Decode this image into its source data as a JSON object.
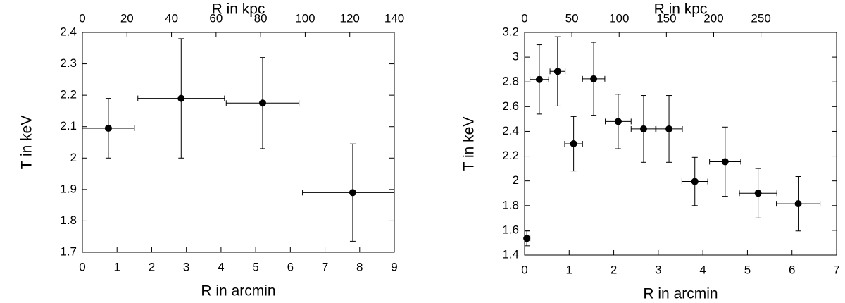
{
  "chart_data": [
    {
      "type": "scatter",
      "xlabel": "R in arcmin",
      "x2label": "R in kpc",
      "ylabel": "T in keV",
      "color": "#000000",
      "x": [
        0.75,
        2.85,
        5.2,
        7.8
      ],
      "xerr": [
        0.75,
        1.25,
        1.05,
        1.45
      ],
      "values": [
        2.095,
        2.19,
        2.175,
        1.89
      ],
      "yerr": [
        0.095,
        0.19,
        0.145,
        0.155
      ],
      "xlim": [
        0,
        9
      ],
      "xticks": [
        0,
        1,
        2,
        3,
        4,
        5,
        6,
        7,
        8,
        9
      ],
      "x2lim": [
        0,
        140
      ],
      "x2ticks": [
        0,
        20,
        40,
        60,
        80,
        100,
        120,
        140
      ],
      "ylim": [
        1.7,
        2.4
      ],
      "yticks": [
        1.7,
        1.8,
        1.9,
        2,
        2.1,
        2.2,
        2.3,
        2.4
      ]
    },
    {
      "type": "scatter",
      "xlabel": "R in arcmin",
      "x2label": "R in kpc",
      "ylabel": "T in keV",
      "color": "#000000",
      "x": [
        0.05,
        0.33,
        0.74,
        1.1,
        1.55,
        2.1,
        2.67,
        3.24,
        3.82,
        4.5,
        5.24,
        6.14
      ],
      "xerr": [
        0.07,
        0.21,
        0.17,
        0.2,
        0.25,
        0.29,
        0.28,
        0.3,
        0.29,
        0.35,
        0.42,
        0.49
      ],
      "values": [
        1.535,
        2.82,
        2.885,
        2.3,
        2.825,
        2.48,
        2.42,
        2.42,
        1.995,
        2.155,
        1.9,
        1.815
      ],
      "yerr": [
        0.06,
        0.28,
        0.28,
        0.22,
        0.295,
        0.22,
        0.27,
        0.27,
        0.195,
        0.28,
        0.2,
        0.22
      ],
      "xlim": [
        0,
        7
      ],
      "xticks": [
        0,
        1,
        2,
        3,
        4,
        5,
        6,
        7
      ],
      "x2lim": [
        0,
        330
      ],
      "x2ticks": [
        0,
        50,
        100,
        150,
        200,
        250
      ],
      "ylim": [
        1.4,
        3.2
      ],
      "yticks": [
        1.4,
        1.6,
        1.8,
        2,
        2.2,
        2.4,
        2.6,
        2.8,
        3,
        3.2
      ]
    }
  ]
}
